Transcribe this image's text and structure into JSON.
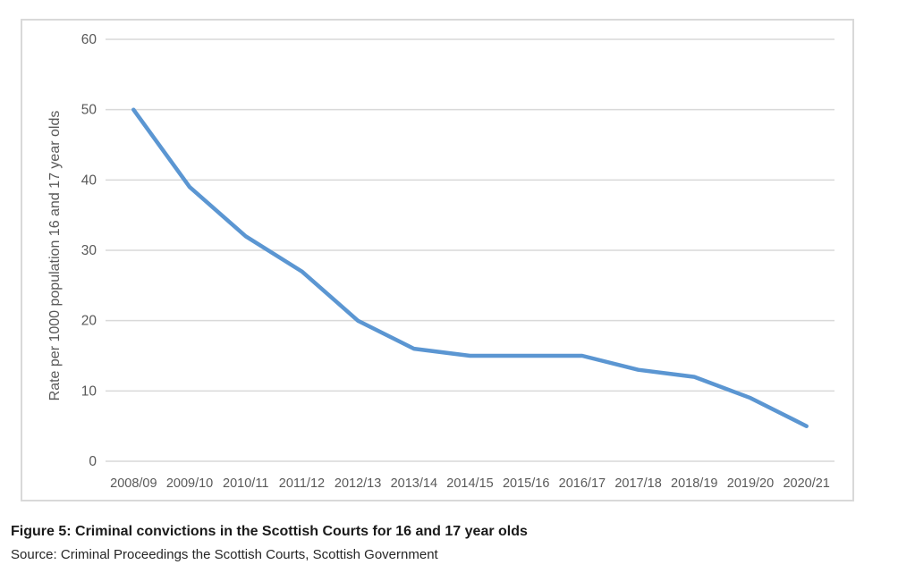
{
  "figure": {
    "caption": "Figure 5: Criminal convictions in the Scottish Courts for 16 and 17 year olds",
    "source": "Source: Criminal Proceedings the Scottish Courts, Scottish Government"
  },
  "chart_data": {
    "type": "line",
    "categories": [
      "2008/09",
      "2009/10",
      "2010/11",
      "2011/12",
      "2012/13",
      "2013/14",
      "2014/15",
      "2015/16",
      "2016/17",
      "2017/18",
      "2018/19",
      "2019/20",
      "2020/21"
    ],
    "series": [
      {
        "name": "Rate per 1000 population 16 and 17 year olds",
        "values": [
          50,
          39,
          32,
          27,
          20,
          16,
          15,
          15,
          15,
          13,
          12,
          9,
          5
        ]
      }
    ],
    "title": "",
    "xlabel": "",
    "ylabel": "Rate per 1000 population 16 and 17 year olds",
    "ylim": [
      0,
      60
    ],
    "ytick_interval": 10,
    "yticks": [
      0,
      10,
      20,
      30,
      40,
      50,
      60
    ],
    "grid": true,
    "legend_position": "none",
    "colors": {
      "line": "#5B96D2",
      "gridline": "#d9d9d9",
      "tick_label": "#595959",
      "axis_title": "#595959",
      "chart_border": "#d9d9d9"
    }
  }
}
